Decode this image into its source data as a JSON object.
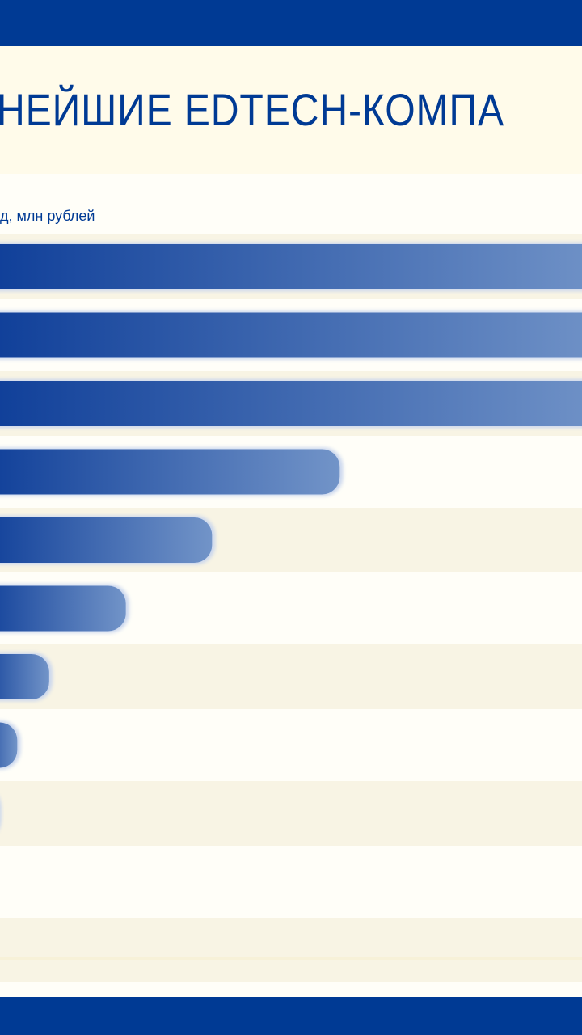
{
  "header": {
    "title": "НЕЙШИЕ EDTECH-КОМПА",
    "subtitle": "д, млн рублей"
  },
  "colors": {
    "brand": "#003a94",
    "background": "#fffef8",
    "bar_start": "#0d3d98",
    "bar_end": "#7294c8",
    "row_stripe": "#f8f4e4",
    "title_band": "#fffbea"
  },
  "chart_data": {
    "type": "bar",
    "orientation": "horizontal",
    "values": [
      100,
      100,
      100,
      57,
      37,
      23.5,
      11.5,
      6.5,
      3.5
    ],
    "xlim": [
      0,
      100
    ],
    "grid": false,
    "legend": "none"
  }
}
